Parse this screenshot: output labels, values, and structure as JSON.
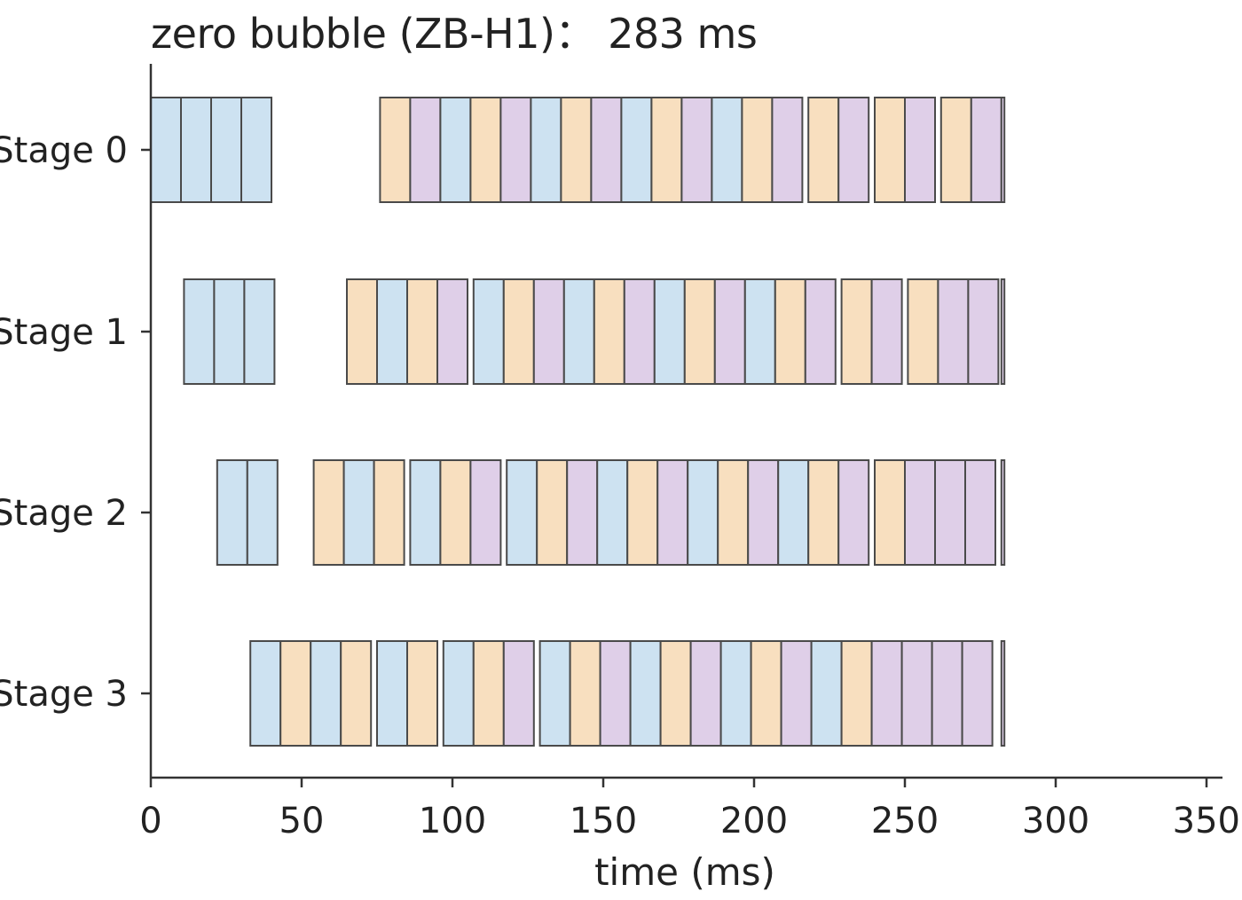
{
  "chart_data": {
    "type": "gantt",
    "title": "zero bubble (ZB-H1)： 283 ms",
    "xlabel": "time (ms)",
    "ylabel": "",
    "xlim": [
      0,
      355
    ],
    "xticks": [
      "0",
      "50",
      "100",
      "150",
      "200",
      "250",
      "300",
      "350"
    ],
    "categories": [
      "Stage 0",
      "Stage 1",
      "Stage 2",
      "Stage 3"
    ],
    "grid": false,
    "legend": "none",
    "colors": {
      "F": "#cde2f1",
      "B": "#f8dfbf",
      "W": "#dfcfe8",
      "edge": "#4a4a4a",
      "axis": "#333333"
    },
    "series": [
      {
        "stage": "Stage 0",
        "blocks": [
          {
            "kind": "F",
            "start": 0,
            "end": 10
          },
          {
            "kind": "F",
            "start": 10,
            "end": 20
          },
          {
            "kind": "F",
            "start": 20,
            "end": 30
          },
          {
            "kind": "F",
            "start": 30,
            "end": 40
          },
          {
            "kind": "B",
            "start": 76,
            "end": 86
          },
          {
            "kind": "W",
            "start": 86,
            "end": 96
          },
          {
            "kind": "F",
            "start": 96,
            "end": 106
          },
          {
            "kind": "B",
            "start": 106,
            "end": 116
          },
          {
            "kind": "W",
            "start": 116,
            "end": 126
          },
          {
            "kind": "F",
            "start": 126,
            "end": 136
          },
          {
            "kind": "B",
            "start": 136,
            "end": 146
          },
          {
            "kind": "W",
            "start": 146,
            "end": 156
          },
          {
            "kind": "F",
            "start": 156,
            "end": 166
          },
          {
            "kind": "B",
            "start": 166,
            "end": 176
          },
          {
            "kind": "W",
            "start": 176,
            "end": 186
          },
          {
            "kind": "F",
            "start": 186,
            "end": 196
          },
          {
            "kind": "B",
            "start": 196,
            "end": 206
          },
          {
            "kind": "W",
            "start": 206,
            "end": 216
          },
          {
            "kind": "B",
            "start": 218,
            "end": 228
          },
          {
            "kind": "W",
            "start": 228,
            "end": 238
          },
          {
            "kind": "B",
            "start": 240,
            "end": 250
          },
          {
            "kind": "W",
            "start": 250,
            "end": 260
          },
          {
            "kind": "B",
            "start": 262,
            "end": 272
          },
          {
            "kind": "W",
            "start": 272,
            "end": 282
          },
          {
            "kind": "W",
            "start": 282,
            "end": 283
          }
        ]
      },
      {
        "stage": "Stage 1",
        "blocks": [
          {
            "kind": "F",
            "start": 11,
            "end": 21
          },
          {
            "kind": "F",
            "start": 21,
            "end": 31
          },
          {
            "kind": "F",
            "start": 31,
            "end": 41
          },
          {
            "kind": "B",
            "start": 65,
            "end": 75
          },
          {
            "kind": "F",
            "start": 75,
            "end": 85
          },
          {
            "kind": "B",
            "start": 85,
            "end": 95
          },
          {
            "kind": "W",
            "start": 95,
            "end": 105
          },
          {
            "kind": "F",
            "start": 107,
            "end": 117
          },
          {
            "kind": "B",
            "start": 117,
            "end": 127
          },
          {
            "kind": "W",
            "start": 127,
            "end": 137
          },
          {
            "kind": "F",
            "start": 137,
            "end": 147
          },
          {
            "kind": "B",
            "start": 147,
            "end": 157
          },
          {
            "kind": "W",
            "start": 157,
            "end": 167
          },
          {
            "kind": "F",
            "start": 167,
            "end": 177
          },
          {
            "kind": "B",
            "start": 177,
            "end": 187
          },
          {
            "kind": "W",
            "start": 187,
            "end": 197
          },
          {
            "kind": "F",
            "start": 197,
            "end": 207
          },
          {
            "kind": "B",
            "start": 207,
            "end": 217
          },
          {
            "kind": "W",
            "start": 217,
            "end": 227
          },
          {
            "kind": "B",
            "start": 229,
            "end": 239
          },
          {
            "kind": "W",
            "start": 239,
            "end": 249
          },
          {
            "kind": "B",
            "start": 251,
            "end": 261
          },
          {
            "kind": "W",
            "start": 261,
            "end": 271
          },
          {
            "kind": "W",
            "start": 271,
            "end": 281
          },
          {
            "kind": "W",
            "start": 282,
            "end": 283
          }
        ]
      },
      {
        "stage": "Stage 2",
        "blocks": [
          {
            "kind": "F",
            "start": 22,
            "end": 32
          },
          {
            "kind": "F",
            "start": 32,
            "end": 42
          },
          {
            "kind": "B",
            "start": 54,
            "end": 64
          },
          {
            "kind": "F",
            "start": 64,
            "end": 74
          },
          {
            "kind": "B",
            "start": 74,
            "end": 84
          },
          {
            "kind": "F",
            "start": 86,
            "end": 96
          },
          {
            "kind": "B",
            "start": 96,
            "end": 106
          },
          {
            "kind": "W",
            "start": 106,
            "end": 116
          },
          {
            "kind": "F",
            "start": 118,
            "end": 128
          },
          {
            "kind": "B",
            "start": 128,
            "end": 138
          },
          {
            "kind": "W",
            "start": 138,
            "end": 148
          },
          {
            "kind": "F",
            "start": 148,
            "end": 158
          },
          {
            "kind": "B",
            "start": 158,
            "end": 168
          },
          {
            "kind": "W",
            "start": 168,
            "end": 178
          },
          {
            "kind": "F",
            "start": 178,
            "end": 188
          },
          {
            "kind": "B",
            "start": 188,
            "end": 198
          },
          {
            "kind": "W",
            "start": 198,
            "end": 208
          },
          {
            "kind": "F",
            "start": 208,
            "end": 218
          },
          {
            "kind": "B",
            "start": 218,
            "end": 228
          },
          {
            "kind": "W",
            "start": 228,
            "end": 238
          },
          {
            "kind": "B",
            "start": 240,
            "end": 250
          },
          {
            "kind": "W",
            "start": 250,
            "end": 260
          },
          {
            "kind": "W",
            "start": 260,
            "end": 270
          },
          {
            "kind": "W",
            "start": 270,
            "end": 280
          },
          {
            "kind": "W",
            "start": 282,
            "end": 283
          }
        ]
      },
      {
        "stage": "Stage 3",
        "blocks": [
          {
            "kind": "F",
            "start": 33,
            "end": 43
          },
          {
            "kind": "B",
            "start": 43,
            "end": 53
          },
          {
            "kind": "F",
            "start": 53,
            "end": 63
          },
          {
            "kind": "B",
            "start": 63,
            "end": 73
          },
          {
            "kind": "F",
            "start": 75,
            "end": 85
          },
          {
            "kind": "B",
            "start": 85,
            "end": 95
          },
          {
            "kind": "F",
            "start": 97,
            "end": 107
          },
          {
            "kind": "B",
            "start": 107,
            "end": 117
          },
          {
            "kind": "W",
            "start": 117,
            "end": 127
          },
          {
            "kind": "F",
            "start": 129,
            "end": 139
          },
          {
            "kind": "B",
            "start": 139,
            "end": 149
          },
          {
            "kind": "W",
            "start": 149,
            "end": 159
          },
          {
            "kind": "F",
            "start": 159,
            "end": 169
          },
          {
            "kind": "B",
            "start": 169,
            "end": 179
          },
          {
            "kind": "W",
            "start": 179,
            "end": 189
          },
          {
            "kind": "F",
            "start": 189,
            "end": 199
          },
          {
            "kind": "B",
            "start": 199,
            "end": 209
          },
          {
            "kind": "W",
            "start": 209,
            "end": 219
          },
          {
            "kind": "F",
            "start": 219,
            "end": 229
          },
          {
            "kind": "B",
            "start": 229,
            "end": 239
          },
          {
            "kind": "W",
            "start": 239,
            "end": 249
          },
          {
            "kind": "W",
            "start": 249,
            "end": 259
          },
          {
            "kind": "W",
            "start": 259,
            "end": 269
          },
          {
            "kind": "W",
            "start": 269,
            "end": 279
          },
          {
            "kind": "W",
            "start": 282,
            "end": 283
          }
        ]
      }
    ]
  }
}
